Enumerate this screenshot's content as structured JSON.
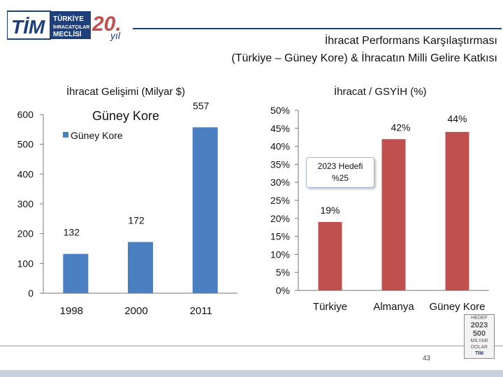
{
  "logo": {
    "brand": "TİM",
    "line1": "TÜRKİYE",
    "line2": "İHRACATÇILAR",
    "line3": "MECLİSİ",
    "anniv_number": "20.",
    "anniv_word": "yıl"
  },
  "header": {
    "title_line1": "İhracat Performans Karşılaştırması",
    "title_line2": "(Türkiye – Güney Kore) & İhracatın Milli Gelire Katkısı"
  },
  "colors": {
    "accent_blue": "#1f3f7a",
    "bar_blue": "#4a7fc1",
    "bar_red": "#c0504d"
  },
  "chart_data": [
    {
      "type": "bar",
      "title": "İhracat Gelişimi (Milyar $)",
      "subtitle": "Güney Kore",
      "legend": "Güney Kore",
      "legend_position": "top-left",
      "categories": [
        "1998",
        "2000",
        "2011"
      ],
      "values": [
        132,
        172,
        557
      ],
      "data_labels": [
        "132",
        "172",
        "557"
      ],
      "ylim": [
        0,
        600
      ],
      "yticks": [
        "0",
        "100",
        "200",
        "300",
        "400",
        "500",
        "600"
      ],
      "grid": false,
      "color": "#4a7fc1"
    },
    {
      "type": "bar",
      "title": "İhracat / GSYİH (%)",
      "categories": [
        "Türkiye",
        "Almanya",
        "Güney Kore"
      ],
      "values": [
        19,
        42,
        44
      ],
      "data_labels": [
        "19%",
        "42%",
        "44%"
      ],
      "ylim": [
        0,
        50
      ],
      "yticks": [
        "0%",
        "5%",
        "10%",
        "15%",
        "20%",
        "25%",
        "30%",
        "35%",
        "40%",
        "45%",
        "50%"
      ],
      "grid": false,
      "color": "#c0504d",
      "annotation": {
        "line1": "2023 Hedefi",
        "line2": "%25"
      }
    }
  ],
  "badge": {
    "line1": "HEDEF",
    "line2": "2023",
    "line3": "500",
    "line4": "MİLYAR",
    "line5": "DOLAR",
    "line6": "TİM"
  },
  "footer": {
    "page_number": "43"
  }
}
